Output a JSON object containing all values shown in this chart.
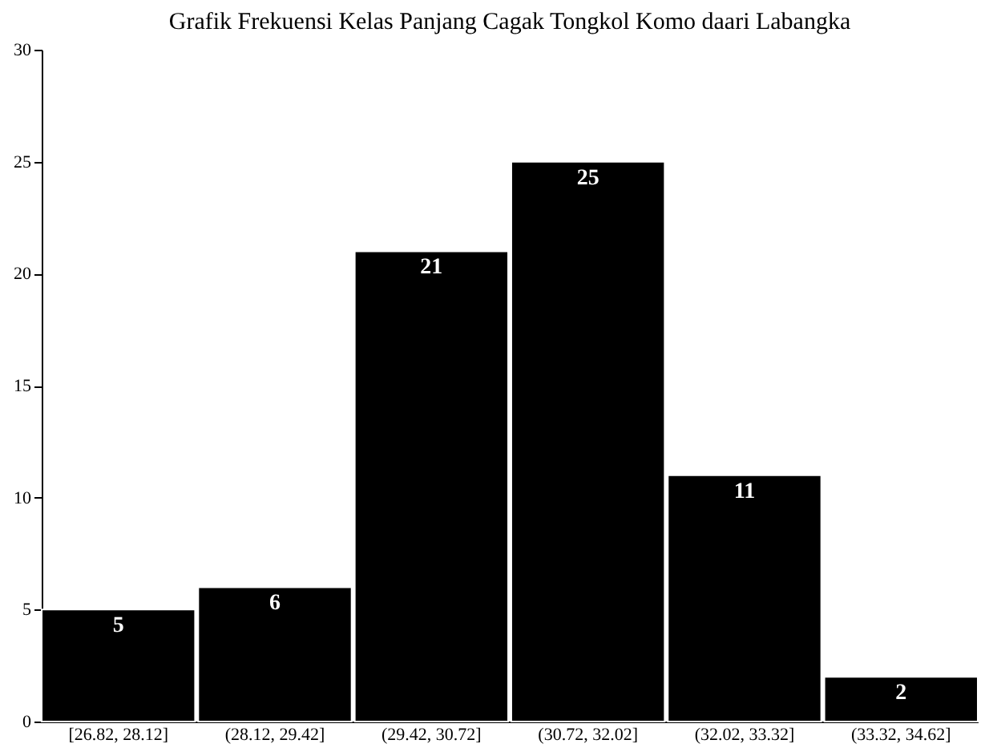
{
  "chart_data": {
    "type": "bar",
    "title": "Grafik Frekuensi Kelas Panjang Cagak Tongkol Komo daari Labangka",
    "categories": [
      "[26.82, 28.12]",
      "(28.12, 29.42]",
      "(29.42, 30.72]",
      "(30.72, 32.02]",
      "(32.02, 33.32]",
      "(33.32, 34.62]"
    ],
    "values": [
      5,
      6,
      21,
      25,
      11,
      2
    ],
    "color": "#000000",
    "ylim": [
      0,
      30
    ],
    "yticks": [
      0,
      5,
      10,
      15,
      20,
      25,
      30
    ],
    "grid": false,
    "data_labels": true
  }
}
